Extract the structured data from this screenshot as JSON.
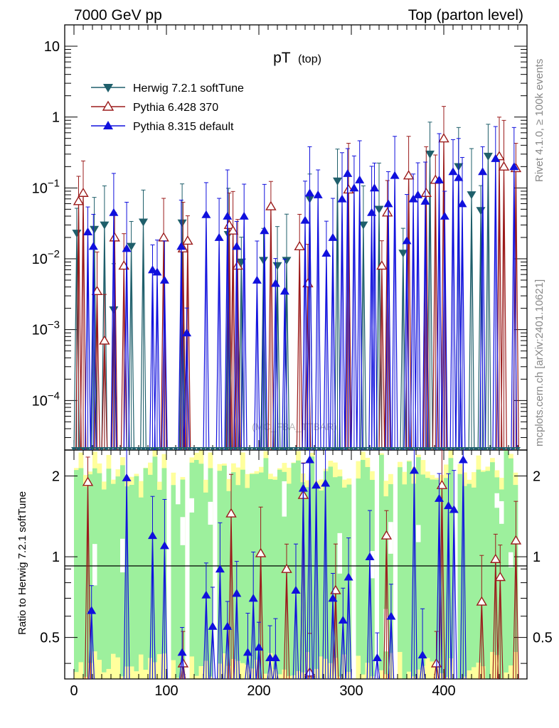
{
  "header": {
    "left": "7000 GeV pp",
    "right": "Top (parton level)"
  },
  "side_text": {
    "rivet": "Rivet 4.1.0, ≥ 100k events",
    "mcplots": "mcplots.cern.ch [arXiv:2401.10621]"
  },
  "watermark": "(MC_FBA_TTBAR)",
  "colors": {
    "herwig": "#1f5f6b",
    "pythia6": "#9b1b1b",
    "pythia8": "#1010dd",
    "band_inner": "#9df09d",
    "band_outer": "#ffff9d"
  },
  "chart_data": [
    {
      "type": "scatter",
      "name": "main",
      "title_main": "pT",
      "title_sub": "(top)",
      "xlim": [
        -10,
        490
      ],
      "ylim": [
        2e-05,
        20
      ],
      "yscale": "log",
      "ytick_labels": [
        {
          "value": 10,
          "base": "10",
          "exp": ""
        },
        {
          "value": 1,
          "base": "1",
          "exp": ""
        },
        {
          "value": 0.1,
          "base": "10",
          "exp": "−1"
        },
        {
          "value": 0.01,
          "base": "10",
          "exp": "−2"
        },
        {
          "value": 0.001,
          "base": "10",
          "exp": "−3"
        },
        {
          "value": 0.0001,
          "base": "10",
          "exp": "−4"
        }
      ],
      "legend": [
        {
          "label": "Herwig 7.2.1 softTune",
          "marker": "triangle-down",
          "color": "#1f5f6b"
        },
        {
          "label": "Pythia 6.428 370",
          "marker": "triangle-open",
          "color": "#9b1b1b"
        },
        {
          "label": "Pythia 8.315 default",
          "marker": "triangle-up",
          "color": "#1010dd"
        }
      ],
      "series": [
        {
          "name": "Herwig 7.2.1 softTune",
          "color": "#1f5f6b",
          "x": [
            3,
            22,
            33,
            43,
            62,
            75,
            117,
            167,
            181,
            205,
            220,
            230,
            255,
            285,
            313,
            330,
            356,
            385,
            416,
            430,
            440,
            448
          ],
          "y": [
            0.023,
            0.026,
            0.03,
            0.0019,
            0.015,
            0.033,
            0.032,
            0.022,
            0.009,
            0.0095,
            0.008,
            0.0095,
            0.07,
            0.125,
            0.03,
            0.05,
            0.012,
            0.3,
            0.2,
            0.08,
            0.048,
            0.28
          ]
        },
        {
          "name": "Pythia 6.428 370",
          "color": "#9b1b1b",
          "x": [
            5,
            10,
            25,
            33,
            44,
            54,
            97,
            118,
            123,
            168,
            172,
            177,
            213,
            244,
            253,
            297,
            333,
            339,
            362,
            381,
            391,
            400,
            460,
            465,
            478
          ],
          "y": [
            0.065,
            0.085,
            0.0035,
            0.0007,
            0.02,
            0.008,
            0.02,
            0.014,
            0.018,
            0.03,
            0.025,
            0.008,
            0.055,
            0.015,
            0.0045,
            0.095,
            0.008,
            0.045,
            0.15,
            0.085,
            0.13,
            0.5,
            0.28,
            0.2,
            0.19
          ]
        },
        {
          "name": "Pythia 8.315 default",
          "color": "#1010dd",
          "x": [
            15,
            21,
            43,
            57,
            85,
            90,
            98,
            116,
            122,
            143,
            157,
            166,
            176,
            184,
            198,
            206,
            218,
            228,
            250,
            255,
            264,
            273,
            280,
            290,
            296,
            303,
            309,
            322,
            325,
            340,
            347,
            360,
            367,
            372,
            380,
            395,
            401,
            410,
            416,
            420,
            442,
            456,
            476
          ],
          "y": [
            0.024,
            0.015,
            0.045,
            0.014,
            0.007,
            0.0065,
            0.005,
            0.015,
            0.0009,
            0.042,
            0.02,
            0.04,
            0.015,
            0.04,
            0.005,
            0.025,
            0.0045,
            0.0035,
            0.035,
            0.085,
            0.08,
            0.012,
            0.02,
            0.07,
            0.16,
            0.1,
            0.13,
            0.045,
            0.1,
            0.06,
            0.15,
            0.018,
            0.07,
            0.08,
            0.065,
            0.13,
            0.04,
            0.17,
            0.14,
            0.06,
            0.17,
            0.26,
            0.2
          ]
        }
      ]
    },
    {
      "type": "scatter",
      "name": "ratio",
      "ylabel": "Ratio to Herwig 7.2.1 softTune",
      "xlim": [
        -10,
        490
      ],
      "ylim": [
        0.35,
        2.5
      ],
      "yscale": "log",
      "xticks": [
        0,
        100,
        200,
        300,
        400
      ],
      "xtick_labels": [
        "0",
        "100",
        "200",
        "300",
        "400"
      ],
      "yticks": [
        0.5,
        1,
        2
      ],
      "ytick_labels": [
        "0.5",
        "1",
        "2"
      ],
      "series": [
        {
          "name": "Pythia 6.428 370",
          "color": "#9b1b1b",
          "x": [
            15,
            118,
            170,
            202,
            230,
            248,
            255,
            283,
            338,
            392,
            398,
            441,
            456,
            461,
            478
          ],
          "y": [
            1.9,
            0.4,
            1.45,
            1.03,
            0.9,
            1.7,
            0.37,
            0.75,
            1.2,
            0.4,
            1.85,
            0.68,
            0.98,
            0.84,
            1.15
          ]
        },
        {
          "name": "Pythia 8.315 default",
          "color": "#1010dd",
          "x": [
            19,
            57,
            85,
            98,
            117,
            143,
            150,
            158,
            166,
            176,
            188,
            194,
            200,
            212,
            218,
            240,
            248,
            255,
            262,
            272,
            280,
            291,
            297,
            320,
            328,
            343,
            368,
            377,
            395,
            405,
            411,
            421
          ],
          "y": [
            0.63,
            1.97,
            1.2,
            1.1,
            0.44,
            0.72,
            0.55,
            0.9,
            0.55,
            0.73,
            0.44,
            0.7,
            0.46,
            0.42,
            0.42,
            0.75,
            1.8,
            2.3,
            1.85,
            1.88,
            0.7,
            0.58,
            0.84,
            1.0,
            0.42,
            0.6,
            2.1,
            0.43,
            1.65,
            1.55,
            1.5,
            2.3
          ]
        }
      ]
    }
  ]
}
